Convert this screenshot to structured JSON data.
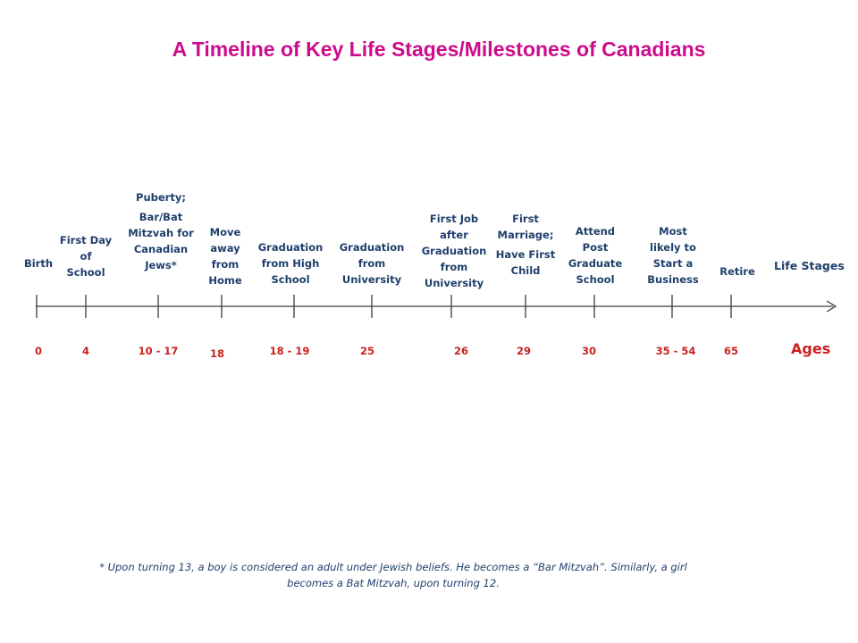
{
  "title": "A Timeline of Key Life Stages/Milestones of Canadians",
  "life_stages_label": "Life Stages",
  "ages_label": "Ages",
  "milestones": [
    {
      "stage": [
        "Birth"
      ],
      "age": "0"
    },
    {
      "stage": [
        "First Day",
        "of",
        "School"
      ],
      "age": "4"
    },
    {
      "stage": [
        "Puberty;",
        "",
        "Bar/Bat",
        "Mitzvah for",
        "Canadian",
        "Jews*"
      ],
      "age": "10 - 17"
    },
    {
      "stage": [
        "Move",
        "away",
        "from",
        "Home"
      ],
      "age": "18"
    },
    {
      "stage": [
        "Graduation",
        "from High",
        "School"
      ],
      "age": "18 - 19"
    },
    {
      "stage": [
        "Graduation",
        "from",
        "University"
      ],
      "age": "25"
    },
    {
      "stage": [
        "First Job",
        "after",
        "Graduation",
        "from",
        "University"
      ],
      "age": "26"
    },
    {
      "stage": [
        "First",
        "Marriage;",
        "",
        "Have First",
        "Child"
      ],
      "age": "29"
    },
    {
      "stage": [
        "Attend",
        "Post",
        "Graduate",
        "School"
      ],
      "age": "30"
    },
    {
      "stage": [
        "Most",
        "likely to",
        "Start a",
        "Business"
      ],
      "age": "35 - 54"
    },
    {
      "stage": [
        "Retire"
      ],
      "age": "65"
    }
  ],
  "footnote_line1": "* Upon turning 13, a boy is considered an adult under Jewish beliefs. He becomes a “Bar Mitzvah”. Similarly, a girl",
  "footnote_line2": "becomes a Bat Mitzvah, upon turning 12.",
  "colors": {
    "title": "#cc0c8c",
    "stage_text": "#1f3f6c",
    "age_text": "#cc1f1f",
    "axis": "#3a3a3a"
  }
}
